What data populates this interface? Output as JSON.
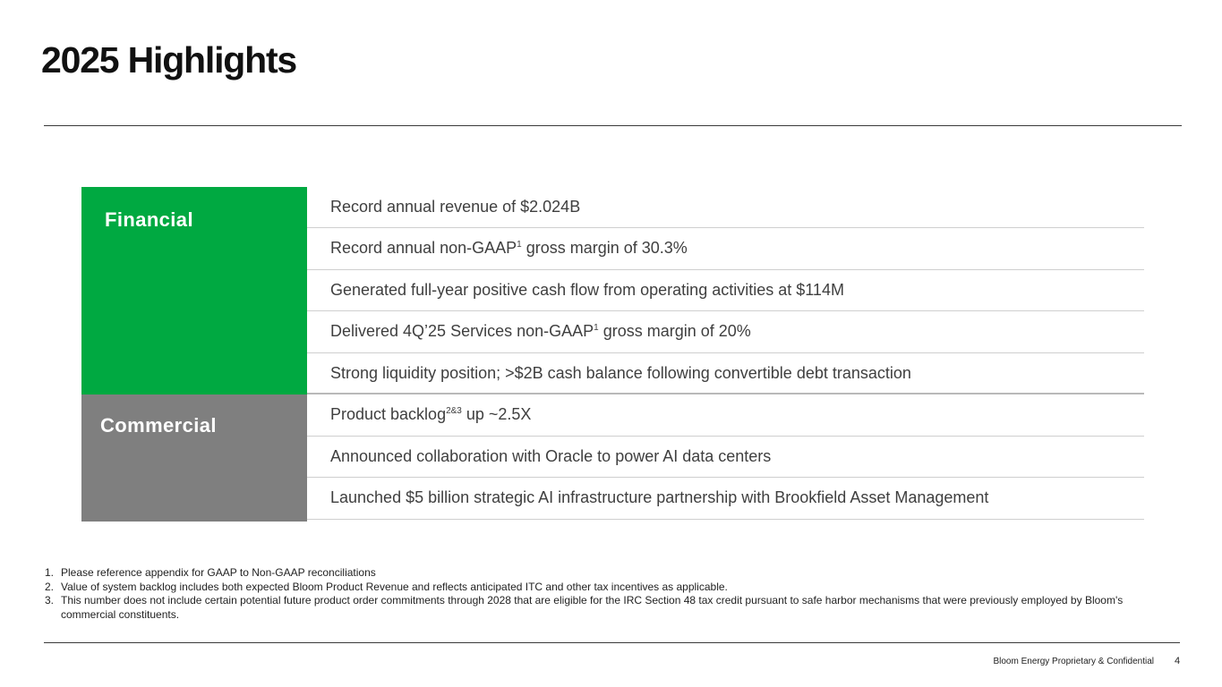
{
  "title": "2025 Highlights",
  "sections": [
    {
      "label": "Financial",
      "color": "#00a941",
      "items": [
        {
          "text": "Record annual revenue of $2.024B",
          "sup": "",
          "after": ""
        },
        {
          "text": "Record annual non-GAAP",
          "sup": "1",
          "after": " gross margin of 30.3%"
        },
        {
          "text": "Generated full-year positive cash flow from operating activities at $114M",
          "sup": "",
          "after": ""
        },
        {
          "text": "Delivered 4Q’25 Services non-GAAP",
          "sup": "1",
          "after": " gross margin of 20%"
        },
        {
          "text": "Strong liquidity position; >$2B cash balance following convertible debt transaction",
          "sup": "",
          "after": ""
        }
      ]
    },
    {
      "label": "Commercial",
      "color": "#7f7f7f",
      "items": [
        {
          "text": "Product backlog",
          "sup": "2&3",
          "after": " up ~2.5X"
        },
        {
          "text": "Announced collaboration with Oracle to power AI data centers",
          "sup": "",
          "after": ""
        },
        {
          "text": "Launched $5 billion strategic AI infrastructure partnership with Brookfield Asset Management",
          "sup": "",
          "after": ""
        }
      ]
    }
  ],
  "footnotes": [
    {
      "num": "1.",
      "text": "Please reference appendix for GAAP to Non-GAAP reconciliations"
    },
    {
      "num": "2.",
      "text": "Value of system backlog includes both expected Bloom Product Revenue and reflects anticipated ITC and other tax incentives as applicable."
    },
    {
      "num": "3.",
      "text": "This number does not include certain potential future product order commitments through 2028 that are eligible for the IRC Section 48 tax credit pursuant to safe harbor mechanisms that were previously employed by Bloom's commercial constituents."
    }
  ],
  "footer": {
    "confidential": "Bloom Energy Proprietary & Confidential",
    "page_number": "4"
  }
}
